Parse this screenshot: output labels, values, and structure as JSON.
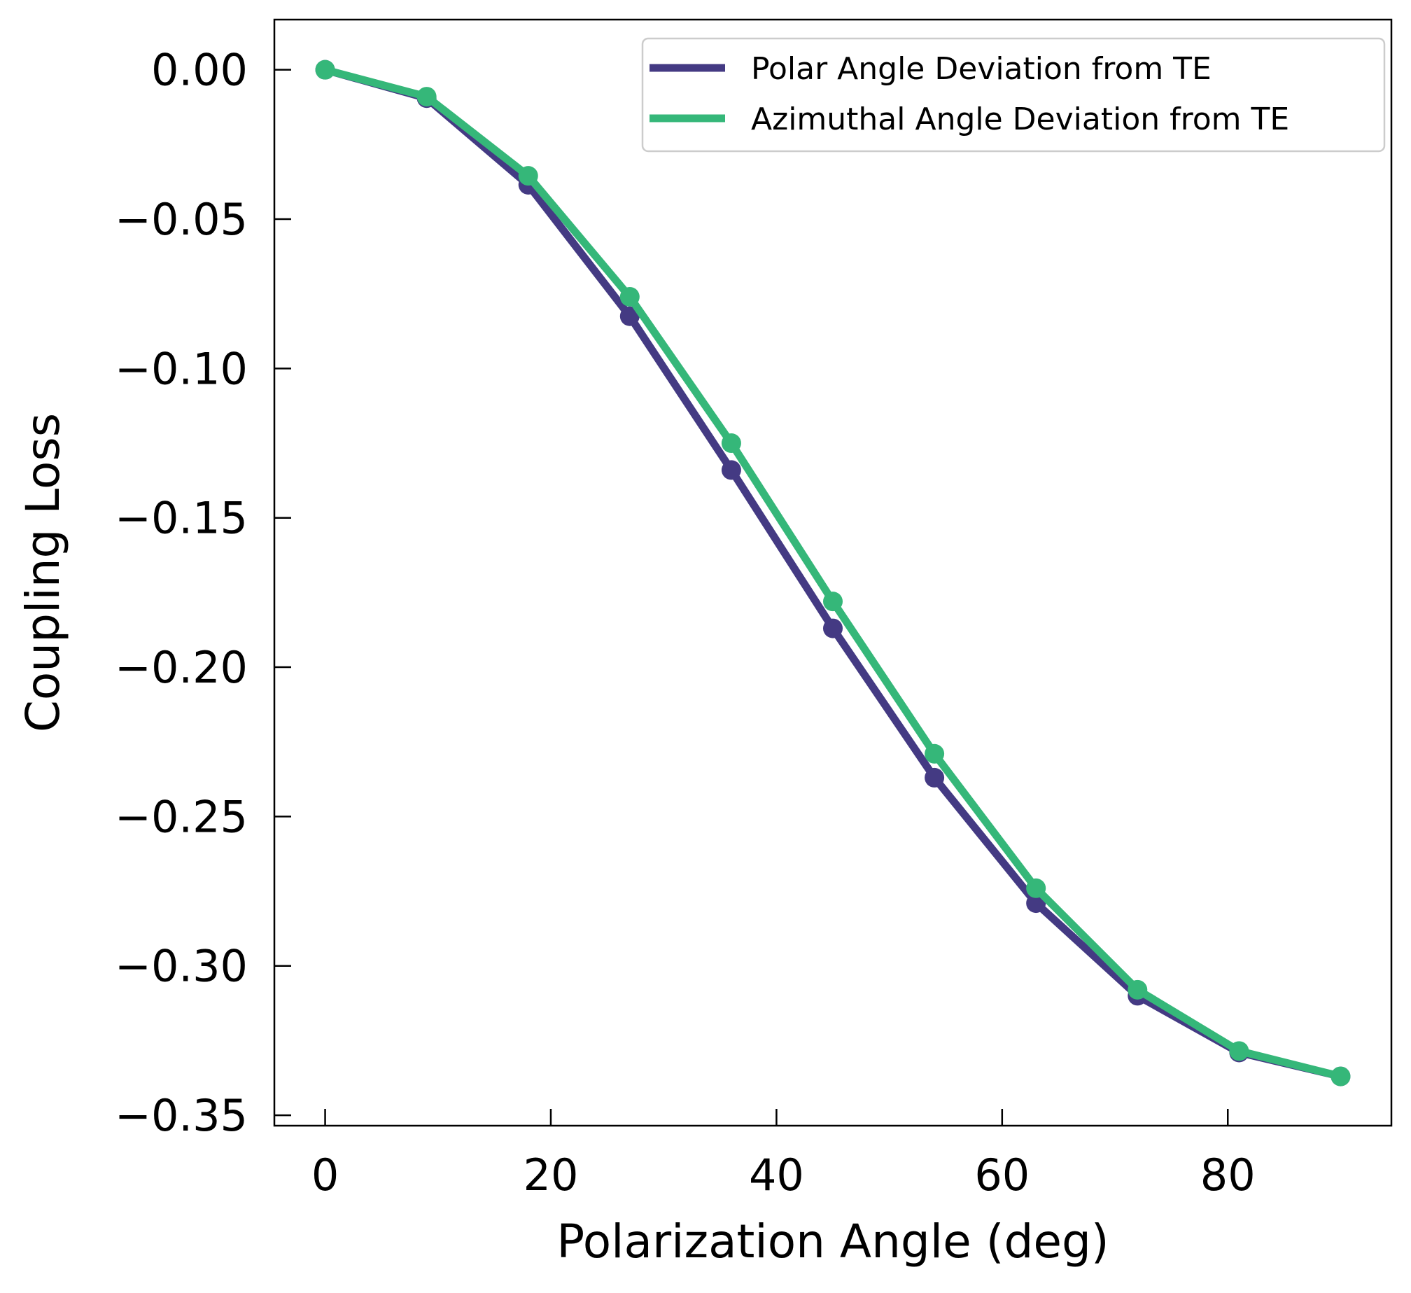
{
  "chart_data": {
    "type": "line",
    "xlabel": "Polarization Angle (deg)",
    "ylabel": "Coupling Loss",
    "xlim": [
      -4.5,
      94.5
    ],
    "ylim": [
      -0.3535,
      0.0168
    ],
    "xticks": [
      0,
      20,
      40,
      60,
      80
    ],
    "xtick_labels": [
      "0",
      "20",
      "40",
      "60",
      "80"
    ],
    "yticks": [
      0.0,
      -0.05,
      -0.1,
      -0.15,
      -0.2,
      -0.25,
      -0.3,
      -0.35
    ],
    "ytick_labels": [
      "0.00",
      "−0.05",
      "−0.10",
      "−0.15",
      "−0.20",
      "−0.25",
      "−0.30",
      "−0.35"
    ],
    "grid": false,
    "legend_position": "top-right",
    "x": [
      0,
      9,
      18,
      27,
      36,
      45,
      54,
      63,
      72,
      81,
      90
    ],
    "series": [
      {
        "name": "Polar Angle Deviation from TE",
        "color": "#443a83",
        "values": [
          0.0,
          -0.0095,
          -0.0385,
          -0.0825,
          -0.134,
          -0.187,
          -0.237,
          -0.279,
          -0.31,
          -0.329,
          -0.337
        ]
      },
      {
        "name": "Azimuthal Angle Deviation from TE",
        "color": "#35b779",
        "values": [
          0.0,
          -0.009,
          -0.0355,
          -0.076,
          -0.125,
          -0.178,
          -0.229,
          -0.274,
          -0.308,
          -0.3285,
          -0.337
        ]
      }
    ]
  }
}
